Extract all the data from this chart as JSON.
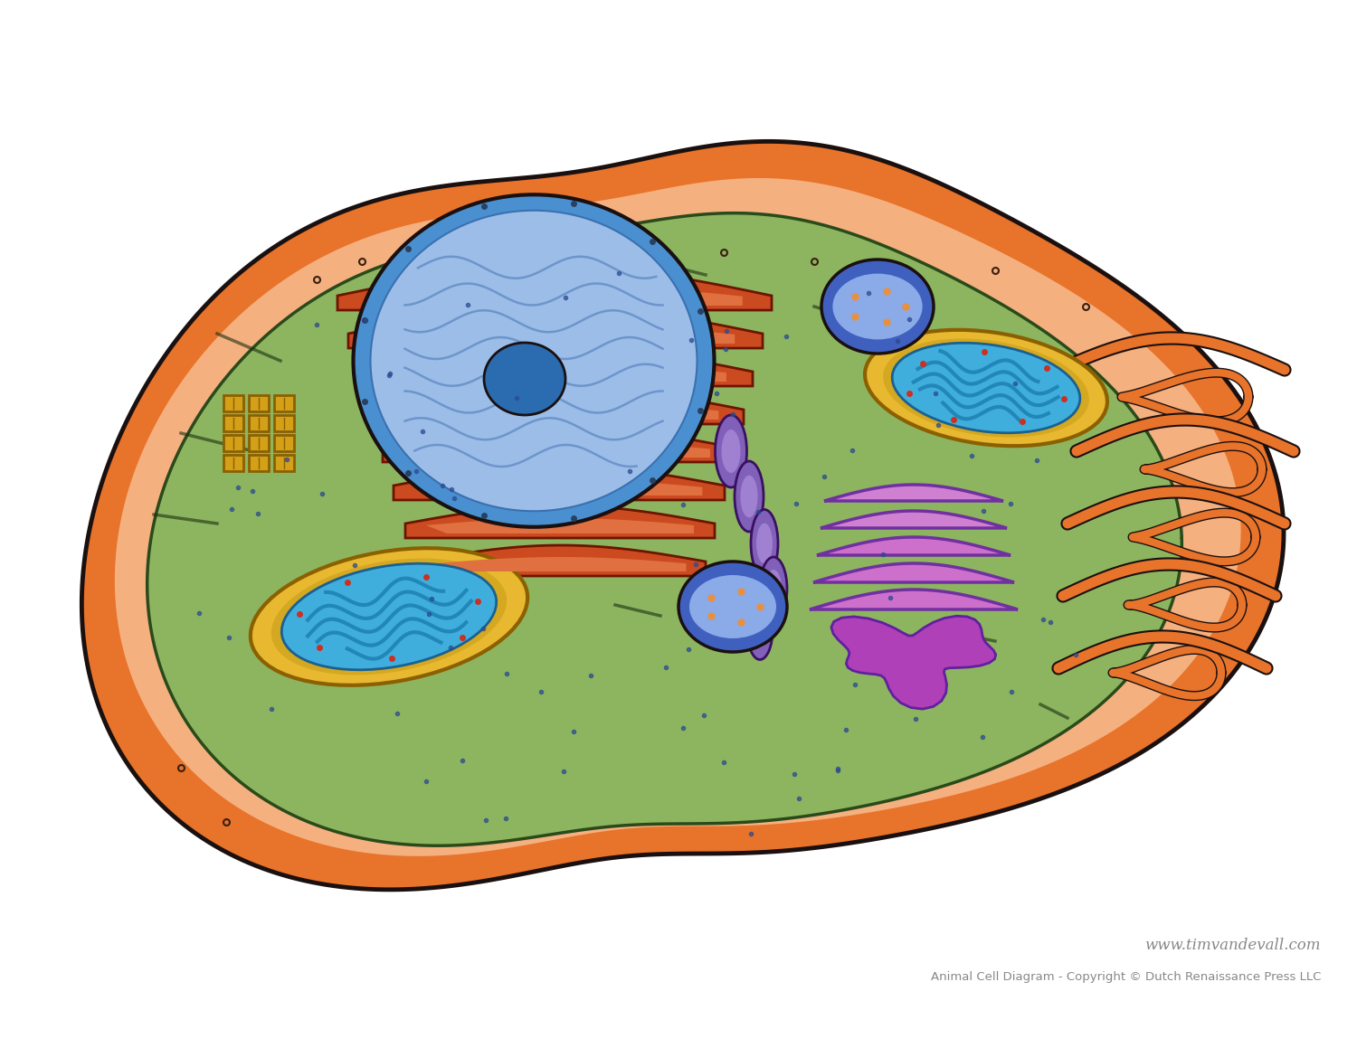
{
  "background_color": "#ffffff",
  "cell_membrane_color": "#E8732A",
  "cell_membrane_inner_color": "#F5B080",
  "cytoplasm_color": "#8DB560",
  "nucleus_outer_color": "#5BA3D9",
  "nucleus_inner_color": "#A0C8F0",
  "nucleolus_color": "#2B6CB0",
  "er_color": "#CC4A20",
  "er_inner_color": "#E07040",
  "golgi_color": "#CC70CC",
  "golgi_dark_color": "#9040A0",
  "mitochondria_outer_color": "#E8B830",
  "mitochondria_inner_color": "#40AEDD",
  "lysosome_outer_color": "#4060C0",
  "lysosome_inner_color": "#8AAAE8",
  "lysosome_dot_color": "#E89040",
  "centriole_color": "#D4A017",
  "centriole_dark": "#8B6000",
  "ribosome_color": "#2B4A90",
  "dark_outline": "#1a1010",
  "watermark_line1": "www.timvandevall.com",
  "watermark_line2": "Animal Cell Diagram - Copyright © Dutch Renaissance Press LLC",
  "watermark_color": "#888888"
}
